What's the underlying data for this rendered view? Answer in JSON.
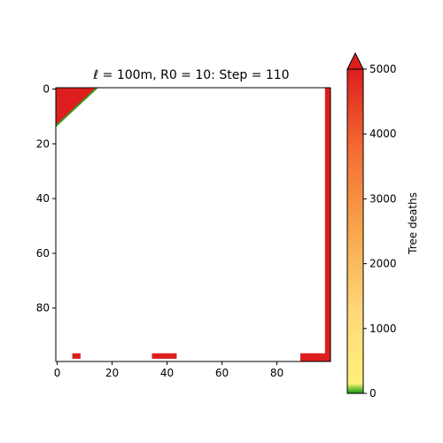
{
  "chart_data": {
    "type": "heatmap",
    "title": "ℓ = 100m, R0 = 10: Step = 110",
    "grid_size": [
      100,
      100
    ],
    "xlim": [
      0,
      99
    ],
    "ylim": [
      99,
      0
    ],
    "xticks": [
      0,
      20,
      40,
      60,
      80
    ],
    "yticks": [
      0,
      20,
      40,
      60,
      80
    ],
    "colorbar": {
      "label": "Tree deaths",
      "range": [
        0,
        5000
      ],
      "ticks": [
        0,
        1000,
        2000,
        3000,
        4000,
        5000
      ],
      "extend": "max",
      "colors": [
        "#1a8f1a",
        "#fff07a",
        "#ffd87a",
        "#f7a64c",
        "#f46d33",
        "#dc1e1e"
      ]
    },
    "cell_value": 5000,
    "edge_value": 0,
    "regions": [
      {
        "name": "top-left-triangle",
        "shape": "triangle",
        "rows": [
          0,
          13
        ],
        "cols": [
          0,
          14
        ],
        "value": 5000
      },
      {
        "name": "right-strip",
        "shape": "rect",
        "rows": [
          0,
          97
        ],
        "cols": [
          98,
          99
        ],
        "value": 5000
      },
      {
        "name": "bottom-strip-right",
        "shape": "rect",
        "rows": [
          97,
          99
        ],
        "cols": [
          89,
          99
        ],
        "value": 5000
      },
      {
        "name": "bottom-strip-mid",
        "shape": "rect",
        "rows": [
          97,
          98
        ],
        "cols": [
          35,
          43
        ],
        "value": 5000
      },
      {
        "name": "bottom-strip-left",
        "shape": "rect",
        "rows": [
          97,
          98
        ],
        "cols": [
          6,
          8
        ],
        "value": 5000
      }
    ]
  }
}
